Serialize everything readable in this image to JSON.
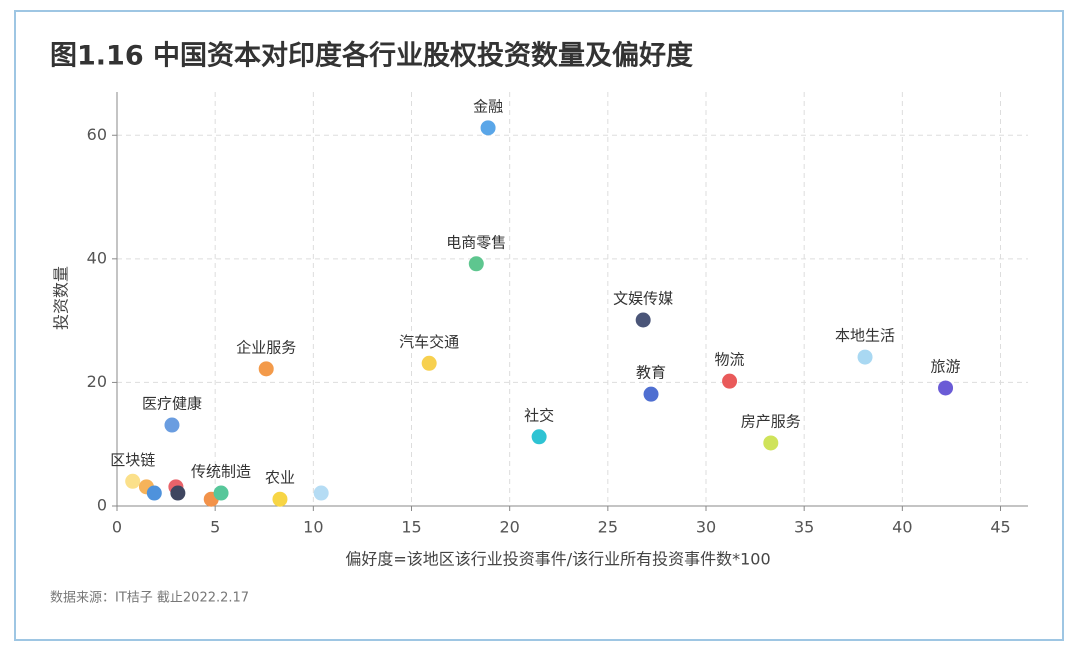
{
  "chart_data": {
    "type": "scatter",
    "title": "图1.16 中国资本对印度各行业股权投资数量及偏好度",
    "x_label": "偏好度=该地区该行业投资事件/该行业所有投资事件数*100",
    "y_label": "投资数量",
    "source": "数据来源：IT桔子 截止2022.2.17",
    "xlim": [
      0,
      46.4
    ],
    "ylim": [
      0,
      67
    ],
    "xticks": [
      0,
      5,
      10,
      15,
      20,
      25,
      30,
      35,
      40,
      45
    ],
    "yticks": [
      0,
      20,
      40,
      60
    ],
    "grid": true,
    "points": [
      {
        "name": "金融",
        "x": 18.9,
        "y": 61.2,
        "color": "#5aa6e8"
      },
      {
        "name": "电商零售",
        "x": 18.3,
        "y": 39.2,
        "color": "#5ec68f"
      },
      {
        "name": "文娱传媒",
        "x": 26.8,
        "y": 30.1,
        "color": "#4a5578"
      },
      {
        "name": "汽车交通",
        "x": 15.9,
        "y": 23.1,
        "color": "#f7d04f"
      },
      {
        "name": "企业服务",
        "x": 7.6,
        "y": 22.2,
        "color": "#f39a4a"
      },
      {
        "name": "本地生活",
        "x": 38.1,
        "y": 24.1,
        "color": "#a9d8f2"
      },
      {
        "name": "旅游",
        "x": 42.2,
        "y": 19.1,
        "color": "#6a5bd6"
      },
      {
        "name": "物流",
        "x": 31.2,
        "y": 20.2,
        "color": "#e95a5a"
      },
      {
        "name": "教育",
        "x": 27.2,
        "y": 18.1,
        "color": "#4f6fd1"
      },
      {
        "name": "医疗健康",
        "x": 2.8,
        "y": 13.1,
        "color": "#6a9de0"
      },
      {
        "name": "社交",
        "x": 21.5,
        "y": 11.2,
        "color": "#2ec3d3"
      },
      {
        "name": "房产服务",
        "x": 33.3,
        "y": 10.2,
        "color": "#cfe35a"
      },
      {
        "name": "区块链",
        "x": 0.8,
        "y": 4.0,
        "color": "#fbe08a"
      },
      {
        "name": null,
        "x": 1.5,
        "y": 3.1,
        "color": "#f6b35a"
      },
      {
        "name": null,
        "x": 1.9,
        "y": 2.1,
        "color": "#4e92dc"
      },
      {
        "name": null,
        "x": 3.0,
        "y": 3.1,
        "color": "#e9636a"
      },
      {
        "name": null,
        "x": 3.1,
        "y": 2.1,
        "color": "#3f4660"
      },
      {
        "name": null,
        "x": 4.8,
        "y": 1.1,
        "color": "#f2924a"
      },
      {
        "name": "传统制造",
        "x": 5.3,
        "y": 2.1,
        "color": "#57c79a"
      },
      {
        "name": "农业",
        "x": 8.3,
        "y": 1.1,
        "color": "#f7d545"
      },
      {
        "name": null,
        "x": 10.4,
        "y": 2.1,
        "color": "#b5dcf4"
      }
    ]
  }
}
